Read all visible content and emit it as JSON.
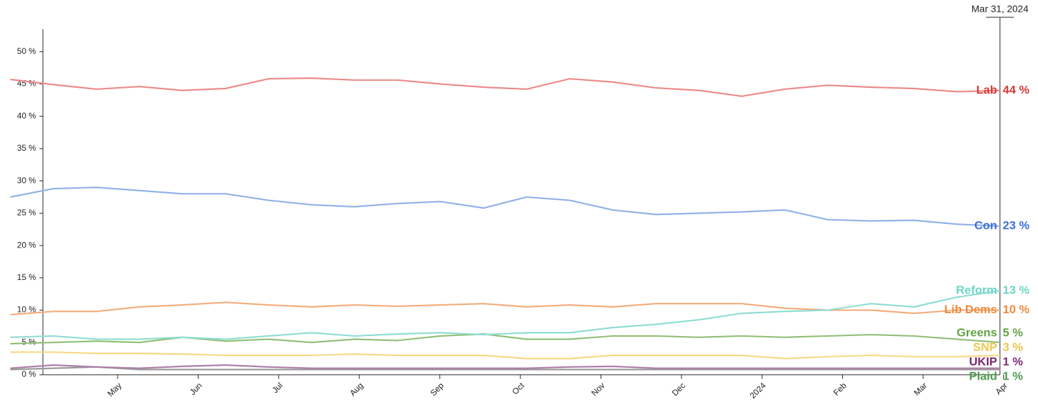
{
  "chart_data": {
    "type": "line",
    "cursor_label": "Mar 31, 2024",
    "xtick_labels": [
      "May",
      "Jun",
      "Jul",
      "Aug",
      "Sep",
      "Oct",
      "Nov",
      "Dec",
      "2024",
      "Feb",
      "Mar",
      "Apr"
    ],
    "ylim": [
      0,
      53.5
    ],
    "yticks": [
      {
        "value": 0,
        "label": "0 %"
      },
      {
        "value": 5,
        "label": "5 %"
      },
      {
        "value": 10,
        "label": "10 %"
      },
      {
        "value": 15,
        "label": "15 %"
      },
      {
        "value": 20,
        "label": "20 %"
      },
      {
        "value": 25,
        "label": "25 %"
      },
      {
        "value": 30,
        "label": "30 %"
      },
      {
        "value": 35,
        "label": "35 %"
      },
      {
        "value": 40,
        "label": "40 %"
      },
      {
        "value": 45,
        "label": "45 %"
      },
      {
        "value": 50,
        "label": "50 %"
      }
    ],
    "series": [
      {
        "name": "Lab",
        "end_label": "44 %",
        "color": "#ec8a88",
        "label_color": "#d93a36",
        "values": [
          45.7,
          44.9,
          44.2,
          44.6,
          44.0,
          44.3,
          45.8,
          45.9,
          45.6,
          45.6,
          45.0,
          44.5,
          44.2,
          45.8,
          45.3,
          44.4,
          44.0,
          43.1,
          44.2,
          44.8,
          44.5,
          44.3,
          43.8,
          44.0
        ]
      },
      {
        "name": "Con",
        "end_label": "23 %",
        "color": "#91b1e8",
        "label_color": "#3b70d4",
        "values": [
          27.5,
          28.8,
          29.0,
          28.5,
          28.0,
          28.0,
          27.0,
          26.3,
          26.0,
          26.5,
          26.8,
          25.8,
          27.5,
          27.0,
          25.5,
          24.8,
          25.0,
          25.2,
          25.5,
          24.0,
          23.8,
          23.9,
          23.3,
          23.0
        ]
      },
      {
        "name": "Reform",
        "end_label": "13 %",
        "color": "#8fddd2",
        "label_color": "#6fd4c6",
        "values": [
          5.8,
          6.0,
          5.5,
          5.5,
          5.8,
          5.5,
          6.0,
          6.5,
          6.0,
          6.3,
          6.5,
          6.2,
          6.5,
          6.5,
          7.3,
          7.8,
          8.5,
          9.5,
          9.8,
          10.0,
          11.0,
          10.5,
          12.0,
          13.0
        ]
      },
      {
        "name": "Lib Dems",
        "end_label": "10 %",
        "color": "#f3ac7a",
        "label_color": "#ef8a3c",
        "values": [
          9.3,
          9.8,
          9.8,
          10.5,
          10.8,
          11.2,
          10.8,
          10.5,
          10.8,
          10.6,
          10.8,
          11.0,
          10.5,
          10.8,
          10.5,
          11.0,
          11.0,
          11.0,
          10.3,
          10.0,
          10.0,
          9.5,
          10.0,
          10.0
        ]
      },
      {
        "name": "Greens",
        "end_label": "5 %",
        "color": "#92c078",
        "label_color": "#63a346",
        "values": [
          4.8,
          5.0,
          5.2,
          5.0,
          5.8,
          5.2,
          5.5,
          5.0,
          5.5,
          5.3,
          6.0,
          6.3,
          5.5,
          5.5,
          6.0,
          6.0,
          5.8,
          6.0,
          5.8,
          6.0,
          6.2,
          6.0,
          5.5,
          5.0
        ]
      },
      {
        "name": "SNP",
        "end_label": "3 %",
        "color": "#f6d985",
        "label_color": "#ecc64e",
        "values": [
          3.5,
          3.5,
          3.3,
          3.3,
          3.2,
          3.0,
          3.0,
          3.0,
          3.2,
          3.0,
          3.0,
          3.0,
          2.5,
          2.5,
          3.0,
          3.0,
          3.0,
          3.0,
          2.5,
          2.8,
          3.0,
          2.8,
          2.8,
          3.0
        ]
      },
      {
        "name": "UKIP",
        "end_label": "1 %",
        "color": "#ae7fa8",
        "label_color": "#7d2a70",
        "values": [
          1.0,
          1.5,
          1.2,
          1.0,
          1.3,
          1.5,
          1.2,
          1.0,
          1.0,
          1.0,
          1.0,
          1.0,
          1.0,
          1.2,
          1.3,
          1.0,
          1.0,
          1.0,
          1.0,
          1.0,
          1.0,
          1.0,
          1.0,
          1.0
        ]
      },
      {
        "name": "Plaid",
        "end_label": "1 %",
        "color": "#9a9a9a",
        "label_color": "#4f9c4b",
        "values": [
          0.8,
          1.0,
          1.2,
          0.8,
          0.8,
          0.8,
          0.8,
          0.8,
          0.8,
          0.8,
          0.8,
          0.8,
          0.8,
          0.8,
          0.8,
          0.8,
          0.8,
          0.8,
          0.8,
          0.8,
          0.8,
          0.8,
          0.8,
          0.8
        ]
      }
    ]
  }
}
